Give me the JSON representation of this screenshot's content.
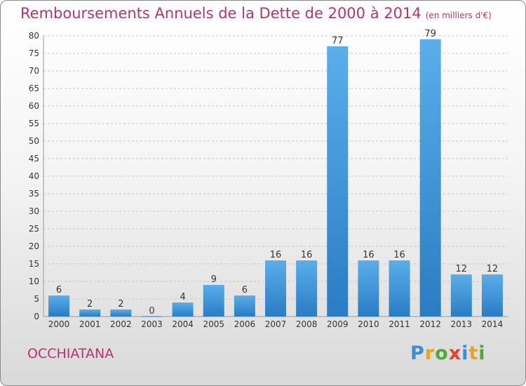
{
  "chart_data": {
    "type": "bar",
    "title": "Remboursements Annuels de la Dette de 2000 à 2014",
    "subtitle": "(en milliers d'€)",
    "categories": [
      "2000",
      "2001",
      "2002",
      "2003",
      "2004",
      "2005",
      "2006",
      "2007",
      "2008",
      "2009",
      "2010",
      "2011",
      "2012",
      "2013",
      "2014"
    ],
    "values": [
      6,
      2,
      2,
      0,
      4,
      9,
      6,
      16,
      16,
      77,
      16,
      16,
      79,
      12,
      12
    ],
    "ylim": [
      0,
      80
    ],
    "yticks": [
      0,
      5,
      10,
      15,
      20,
      25,
      30,
      35,
      40,
      45,
      50,
      55,
      60,
      65,
      70,
      75,
      80
    ],
    "xlabel": "",
    "ylabel": "",
    "grid": true,
    "bar_color": "#4da3e2"
  },
  "footer": {
    "place": "OCCHIATANA",
    "logo": [
      "P",
      "r",
      "o",
      "x",
      "i",
      "t",
      "i"
    ]
  }
}
